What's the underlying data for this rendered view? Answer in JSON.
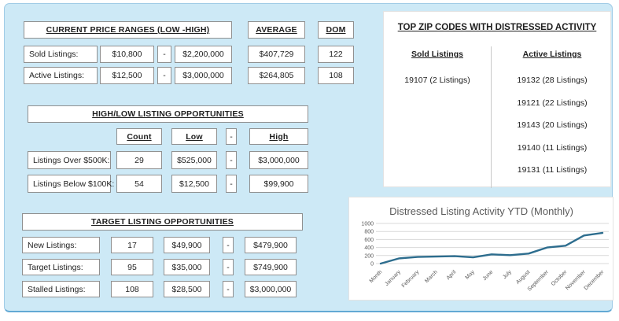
{
  "price_ranges": {
    "title": "CURRENT PRICE RANGES (LOW -HIGH)",
    "average_header": "AVERAGE",
    "dom_header": "DOM",
    "separator": "-",
    "rows": [
      {
        "label": "Sold Listings:",
        "low": "$10,800",
        "high": "$2,200,000",
        "average": "$407,729",
        "dom": "122"
      },
      {
        "label": "Active Listings:",
        "low": "$12,500",
        "high": "$3,000,000",
        "average": "$264,805",
        "dom": "108"
      }
    ]
  },
  "high_low": {
    "title": "HIGH/LOW LISTING OPPORTUNITIES",
    "headers": {
      "count": "Count",
      "low": "Low",
      "sep": "-",
      "high": "High"
    },
    "separator": "-",
    "rows": [
      {
        "label": "Listings Over $500K:",
        "count": "29",
        "low": "$525,000",
        "high": "$3,000,000"
      },
      {
        "label": "Listings Below $100K:",
        "count": "54",
        "low": "$12,500",
        "high": "$99,900"
      }
    ]
  },
  "target": {
    "title": "TARGET LISTING OPPORTUNITIES",
    "separator": "-",
    "rows": [
      {
        "label": "New Listings:",
        "count": "17",
        "low": "$49,900",
        "high": "$479,900"
      },
      {
        "label": "Target Listings:",
        "count": "95",
        "low": "$35,000",
        "high": "$749,900"
      },
      {
        "label": "Stalled Listings:",
        "count": "108",
        "low": "$28,500",
        "high": "$3,000,000"
      }
    ]
  },
  "zip_codes": {
    "title": "TOP ZIP CODES WITH DISTRESSED ACTIVITY",
    "sold": {
      "header": "Sold Listings",
      "items": [
        "19107 (2 Listings)"
      ]
    },
    "active": {
      "header": "Active Listings",
      "items": [
        "19132 (28 Listings)",
        "19121 (22 Listings)",
        "19143 (20 Listings)",
        "19140 (11 Listings)",
        "19131 (11 Listings)"
      ]
    }
  },
  "chart_data": {
    "type": "line",
    "title": "Distressed Listing Activity YTD (Monthly)",
    "categories": [
      "Month",
      "January",
      "February",
      "March",
      "April",
      "May",
      "June",
      "July",
      "August",
      "September",
      "October",
      "November",
      "December"
    ],
    "values": [
      0,
      130,
      165,
      175,
      185,
      155,
      230,
      210,
      250,
      400,
      445,
      700,
      765
    ],
    "yticks": [
      0,
      200,
      400,
      600,
      800,
      1000
    ],
    "ylim": [
      0,
      1000
    ],
    "xlabel": "",
    "ylabel": "",
    "grid": true,
    "legend": false,
    "line_color": "#2d6d8e"
  },
  "colors": {
    "page_background": "#ffffff",
    "card_background": "#cde9f6",
    "card_border": "#63a9d4",
    "cell_border": "#909090",
    "chart_line": "#2d6d8e",
    "chart_text": "#595959",
    "gridline": "#d9d9d9"
  }
}
